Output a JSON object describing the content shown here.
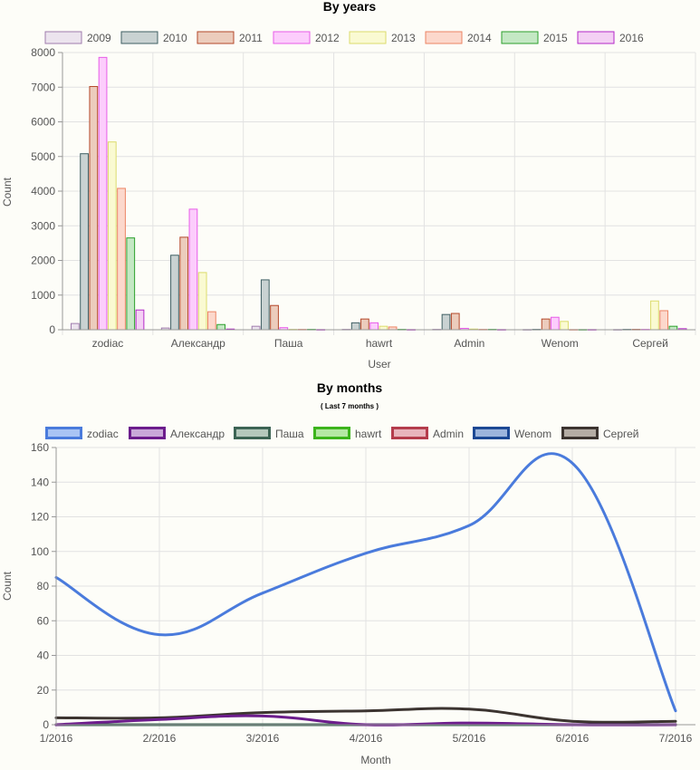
{
  "chart_data": [
    {
      "type": "bar",
      "title": "By years",
      "xlabel": "User",
      "ylabel": "Count",
      "ylim": [
        0,
        8000
      ],
      "yticks": [
        0,
        1000,
        2000,
        3000,
        4000,
        5000,
        6000,
        7000,
        8000
      ],
      "legend": "top",
      "grid": true,
      "categories": [
        "zodiac",
        "Александр",
        "Паша",
        "hawrt",
        "Admin",
        "Wenom",
        "Сергей"
      ],
      "series": [
        {
          "name": "2009",
          "fill": "#ece4ee",
          "stroke": "#a07cad",
          "values": [
            180,
            50,
            100,
            10,
            10,
            5,
            5
          ]
        },
        {
          "name": "2010",
          "fill": "#c9d2d2",
          "stroke": "#3f5f63",
          "values": [
            5080,
            2150,
            1440,
            200,
            440,
            10,
            10
          ]
        },
        {
          "name": "2011",
          "fill": "#ecccbc",
          "stroke": "#b4482a",
          "values": [
            7020,
            2670,
            700,
            310,
            470,
            310,
            10
          ]
        },
        {
          "name": "2012",
          "fill": "#fccdfc",
          "stroke": "#e85ce8",
          "values": [
            7860,
            3480,
            60,
            200,
            40,
            360,
            10
          ]
        },
        {
          "name": "2013",
          "fill": "#fafad2",
          "stroke": "#dcdc6c",
          "values": [
            5420,
            1650,
            10,
            100,
            20,
            240,
            830
          ]
        },
        {
          "name": "2014",
          "fill": "#fcd8cc",
          "stroke": "#ec8464",
          "values": [
            4080,
            520,
            10,
            80,
            10,
            5,
            550
          ]
        },
        {
          "name": "2015",
          "fill": "#c4e8c4",
          "stroke": "#2ca02c",
          "values": [
            2650,
            150,
            10,
            10,
            10,
            5,
            100
          ]
        },
        {
          "name": "2016",
          "fill": "#f4d0f4",
          "stroke": "#b428c8",
          "values": [
            570,
            20,
            5,
            5,
            5,
            5,
            30
          ]
        }
      ]
    },
    {
      "type": "line",
      "title": "By months",
      "subtitle": "( Last 7 months )",
      "xlabel": "Month",
      "ylabel": "Count",
      "ylim": [
        0,
        160
      ],
      "yticks": [
        0,
        20,
        40,
        60,
        80,
        100,
        120,
        140,
        160
      ],
      "legend": "top",
      "grid": true,
      "categories": [
        "1/2016",
        "2/2016",
        "3/2016",
        "4/2016",
        "5/2016",
        "6/2016",
        "7/2016"
      ],
      "series": [
        {
          "name": "zodiac",
          "color": "#4a7bdc",
          "fill": "#a9c4f4",
          "values": [
            85,
            52,
            76,
            99,
            115,
            151,
            8
          ]
        },
        {
          "name": "Александр",
          "color": "#6c1c8c",
          "fill": "#c9a8d8",
          "values": [
            0,
            3,
            5,
            0,
            1,
            0,
            0
          ]
        },
        {
          "name": "Паша",
          "color": "#3c6454",
          "fill": "#b4c8bc",
          "values": [
            0,
            0,
            0,
            0,
            0,
            0,
            0
          ]
        },
        {
          "name": "hawrt",
          "color": "#3cb41c",
          "fill": "#b4e8a4",
          "values": [
            0,
            0,
            0,
            0,
            0,
            0,
            0
          ]
        },
        {
          "name": "Admin",
          "color": "#b43c4c",
          "fill": "#e8b4bc",
          "values": [
            0,
            0,
            0,
            0,
            0,
            0,
            0
          ]
        },
        {
          "name": "Wenom",
          "color": "#1c4894",
          "fill": "#9cb4dc",
          "values": [
            0,
            0,
            0,
            0,
            0,
            0,
            0
          ]
        },
        {
          "name": "Сергей",
          "color": "#3c3430",
          "fill": "#b4aca4",
          "values": [
            4,
            4,
            7,
            8,
            9,
            2,
            2
          ]
        }
      ]
    }
  ]
}
